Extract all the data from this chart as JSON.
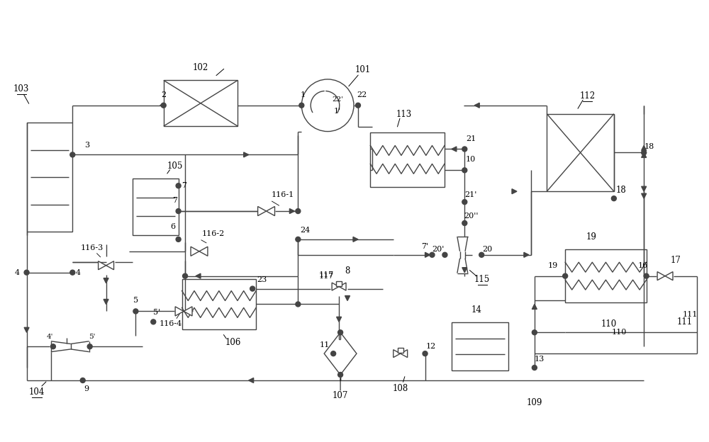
{
  "bg_color": "#ffffff",
  "line_color": "#444444",
  "figsize": [
    10.0,
    6.24
  ],
  "dpi": 100
}
